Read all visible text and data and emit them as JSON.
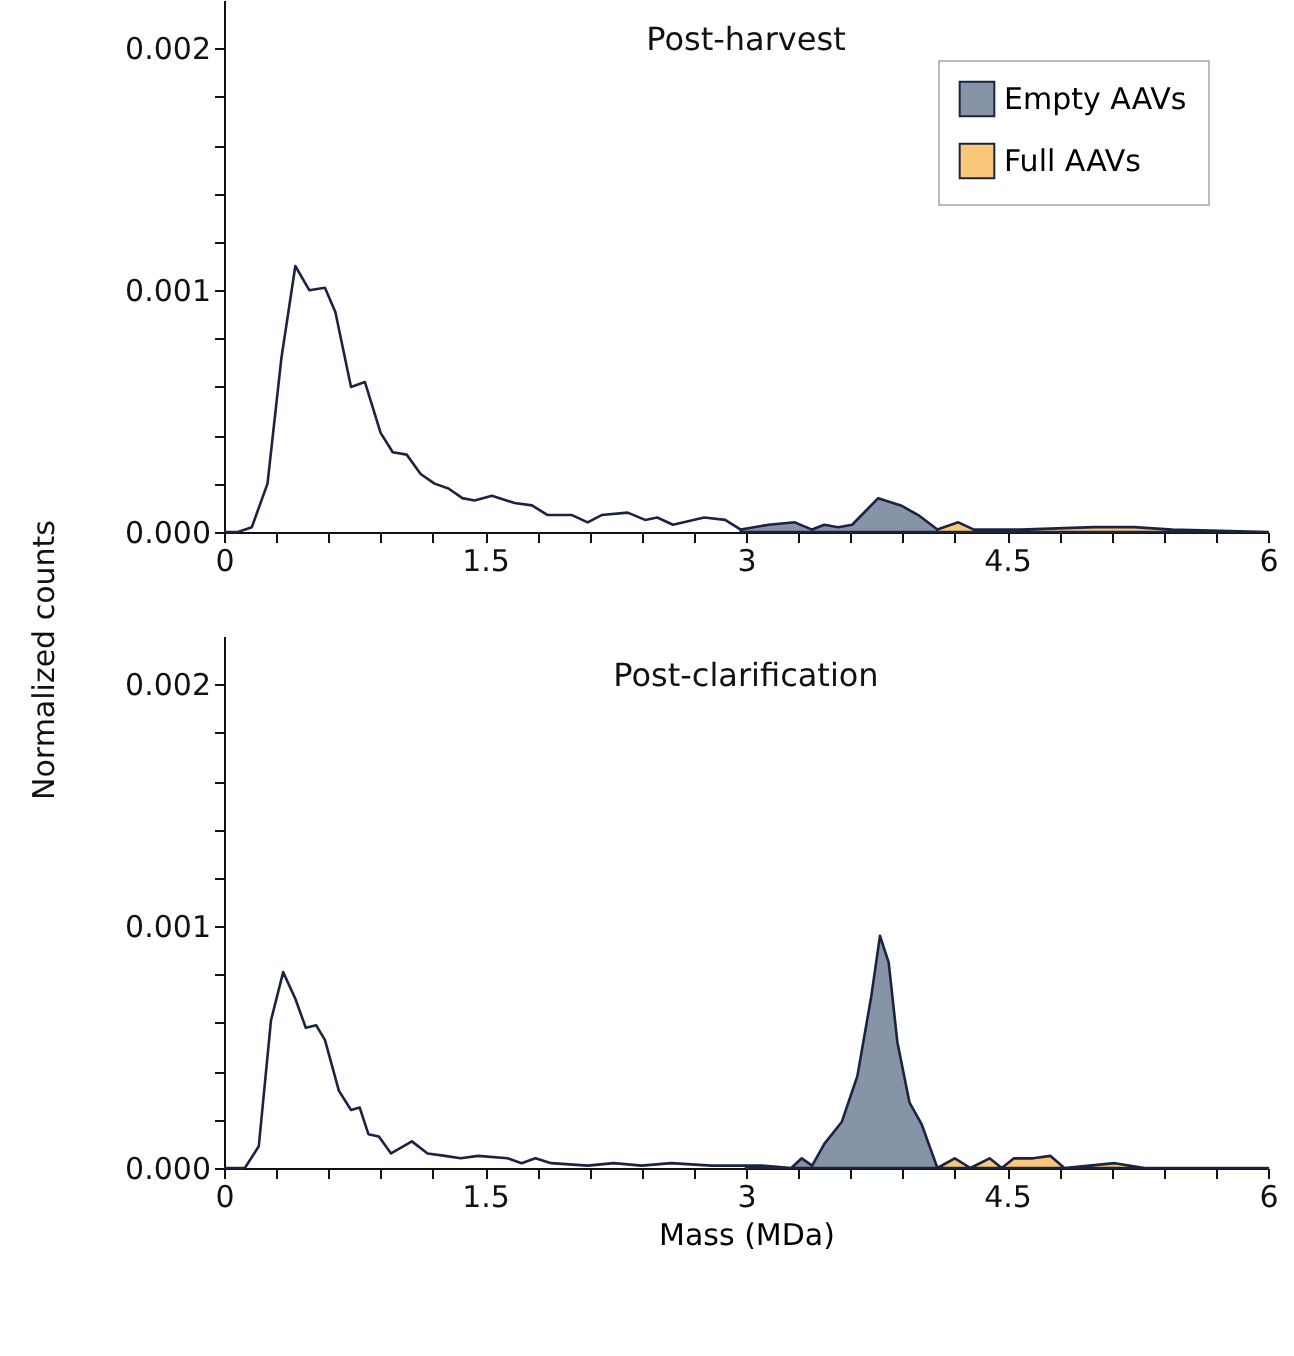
{
  "chart_data": [
    {
      "type": "area",
      "title": "Post-harvest",
      "ylabel": "Normalized counts",
      "legend": "top right",
      "xlim": [
        0,
        6
      ],
      "ylim": [
        0,
        0.0022
      ],
      "xticks": [
        0,
        {
          "value": 0.3,
          "label": null
        },
        {
          "value": 0.6,
          "label": null
        },
        {
          "value": 0.9,
          "label": null
        },
        {
          "value": 1.2,
          "label": null
        },
        1.5,
        {
          "value": 1.8,
          "label": null
        },
        {
          "value": 2.1,
          "label": null
        },
        {
          "value": 2.4,
          "label": null
        },
        {
          "value": 2.7,
          "label": null
        },
        3,
        {
          "value": 3.3,
          "label": null
        },
        {
          "value": 3.6,
          "label": null
        },
        {
          "value": 3.9,
          "label": null
        },
        {
          "value": 4.2,
          "label": null
        },
        4.5,
        {
          "value": 4.8,
          "label": null
        },
        {
          "value": 5.1,
          "label": null
        },
        {
          "value": 5.4,
          "label": null
        },
        {
          "value": 5.7,
          "label": null
        },
        6
      ],
      "yticks": [
        {
          "value": 0,
          "label": "0.000"
        },
        {
          "value": 0.0002,
          "label": null
        },
        {
          "value": 0.0004,
          "label": null
        },
        {
          "value": 0.0006,
          "label": null
        },
        {
          "value": 0.0008,
          "label": null
        },
        {
          "value": 0.001,
          "label": "0.001"
        },
        {
          "value": 0.0012,
          "label": null
        },
        {
          "value": 0.0014,
          "label": null
        },
        {
          "value": 0.0016,
          "label": null
        },
        {
          "value": 0.0018,
          "label": null
        },
        {
          "value": 0.002,
          "label": "0.002"
        }
      ],
      "series": [
        {
          "type": "line",
          "color": "#1c2340",
          "x": [
            0,
            0.08,
            0.16,
            0.25,
            0.33,
            0.41,
            0.49,
            0.58,
            0.64,
            0.73,
            0.81,
            0.9,
            0.97,
            1.05,
            1.13,
            1.21,
            1.29,
            1.37,
            1.44,
            1.54,
            1.67,
            1.77,
            1.86,
            2.0,
            2.09,
            2.17,
            2.32,
            2.42,
            2.49,
            2.58,
            2.76,
            2.88,
            2.97
          ],
          "values": [
            0,
            0,
            2e-05,
            0.0002,
            0.00072,
            0.0011,
            0.001,
            0.00101,
            0.00091,
            0.0006,
            0.00062,
            0.00041,
            0.00033,
            0.00032,
            0.00024,
            0.0002,
            0.00018,
            0.00014,
            0.00013,
            0.00015,
            0.00012,
            0.00011,
            7e-05,
            7e-05,
            4e-05,
            7e-05,
            8e-05,
            5e-05,
            6e-05,
            3e-05,
            6e-05,
            5e-05,
            1e-05
          ]
        },
        {
          "type": "area",
          "name": "Empty AAVs",
          "color": "#8794a8",
          "x": [
            2.97,
            3.13,
            3.28,
            3.38,
            3.45,
            3.53,
            3.61,
            3.76,
            3.89,
            3.99,
            4.1
          ],
          "values": [
            1e-05,
            3e-05,
            4e-05,
            1e-05,
            3e-05,
            2e-05,
            3e-05,
            0.00014,
            0.00011,
            7e-05,
            1e-05
          ]
        },
        {
          "type": "area",
          "name": "Full AAVs",
          "color": "#f8c878",
          "x": [
            4.1,
            4.22,
            4.31,
            4.58,
            5.0,
            5.23,
            5.45,
            6
          ],
          "values": [
            1e-05,
            4e-05,
            1e-05,
            1e-05,
            2e-05,
            2e-05,
            1e-05,
            0
          ]
        }
      ]
    },
    {
      "type": "area",
      "title": "Post-clarification",
      "xlabel": "Mass (MDa)",
      "xlim": [
        0,
        6
      ],
      "ylim": [
        0,
        0.0022
      ],
      "xticks": [
        0,
        {
          "value": 0.3,
          "label": null
        },
        {
          "value": 0.6,
          "label": null
        },
        {
          "value": 0.9,
          "label": null
        },
        {
          "value": 1.2,
          "label": null
        },
        1.5,
        {
          "value": 1.8,
          "label": null
        },
        {
          "value": 2.1,
          "label": null
        },
        {
          "value": 2.4,
          "label": null
        },
        {
          "value": 2.7,
          "label": null
        },
        3,
        {
          "value": 3.3,
          "label": null
        },
        {
          "value": 3.6,
          "label": null
        },
        {
          "value": 3.9,
          "label": null
        },
        {
          "value": 4.2,
          "label": null
        },
        4.5,
        {
          "value": 4.8,
          "label": null
        },
        {
          "value": 5.1,
          "label": null
        },
        {
          "value": 5.4,
          "label": null
        },
        {
          "value": 5.7,
          "label": null
        },
        6
      ],
      "yticks": [
        {
          "value": 0,
          "label": "0.000"
        },
        {
          "value": 0.0002,
          "label": null
        },
        {
          "value": 0.0004,
          "label": null
        },
        {
          "value": 0.0006,
          "label": null
        },
        {
          "value": 0.0008,
          "label": null
        },
        {
          "value": 0.001,
          "label": "0.001"
        },
        {
          "value": 0.0012,
          "label": null
        },
        {
          "value": 0.0014,
          "label": null
        },
        {
          "value": 0.0016,
          "label": null
        },
        {
          "value": 0.0018,
          "label": null
        },
        {
          "value": 0.002,
          "label": "0.002"
        }
      ],
      "series": [
        {
          "type": "line",
          "color": "#1c2340",
          "x": [
            0,
            0.12,
            0.2,
            0.27,
            0.34,
            0.41,
            0.47,
            0.53,
            0.58,
            0.66,
            0.73,
            0.78,
            0.83,
            0.89,
            0.96,
            1.08,
            1.17,
            1.27,
            1.36,
            1.46,
            1.63,
            1.71,
            1.79,
            1.88,
            2.09,
            2.24,
            2.4,
            2.57,
            2.8,
            3.0
          ],
          "values": [
            0,
            0,
            9e-05,
            0.00061,
            0.00081,
            0.0007,
            0.00058,
            0.00059,
            0.00053,
            0.00032,
            0.00024,
            0.00025,
            0.00014,
            0.00013,
            6e-05,
            0.00011,
            6e-05,
            5e-05,
            4e-05,
            5e-05,
            4e-05,
            2e-05,
            4e-05,
            2e-05,
            1e-05,
            2e-05,
            1e-05,
            2e-05,
            1e-05,
            1e-05
          ]
        },
        {
          "type": "area",
          "color": "#8794a8",
          "x": [
            3.0,
            3.09,
            3.26,
            3.32,
            3.38,
            3.45,
            3.55,
            3.64,
            3.72,
            3.77,
            3.82,
            3.87,
            3.94,
            4.01,
            4.1
          ],
          "values": [
            1e-05,
            1e-05,
            0,
            4e-05,
            1e-05,
            0.0001,
            0.00019,
            0.00038,
            0.00071,
            0.00096,
            0.00085,
            0.00052,
            0.00027,
            0.00018,
            0
          ]
        },
        {
          "type": "area",
          "color": "#f8c878",
          "x": [
            4.1,
            4.2,
            4.29,
            4.4,
            4.47,
            4.54,
            4.65,
            4.75,
            4.83,
            5.12,
            5.29,
            6
          ],
          "values": [
            0,
            4e-05,
            0,
            4e-05,
            0,
            4e-05,
            4e-05,
            5e-05,
            0,
            2e-05,
            0,
            0
          ]
        }
      ]
    }
  ]
}
